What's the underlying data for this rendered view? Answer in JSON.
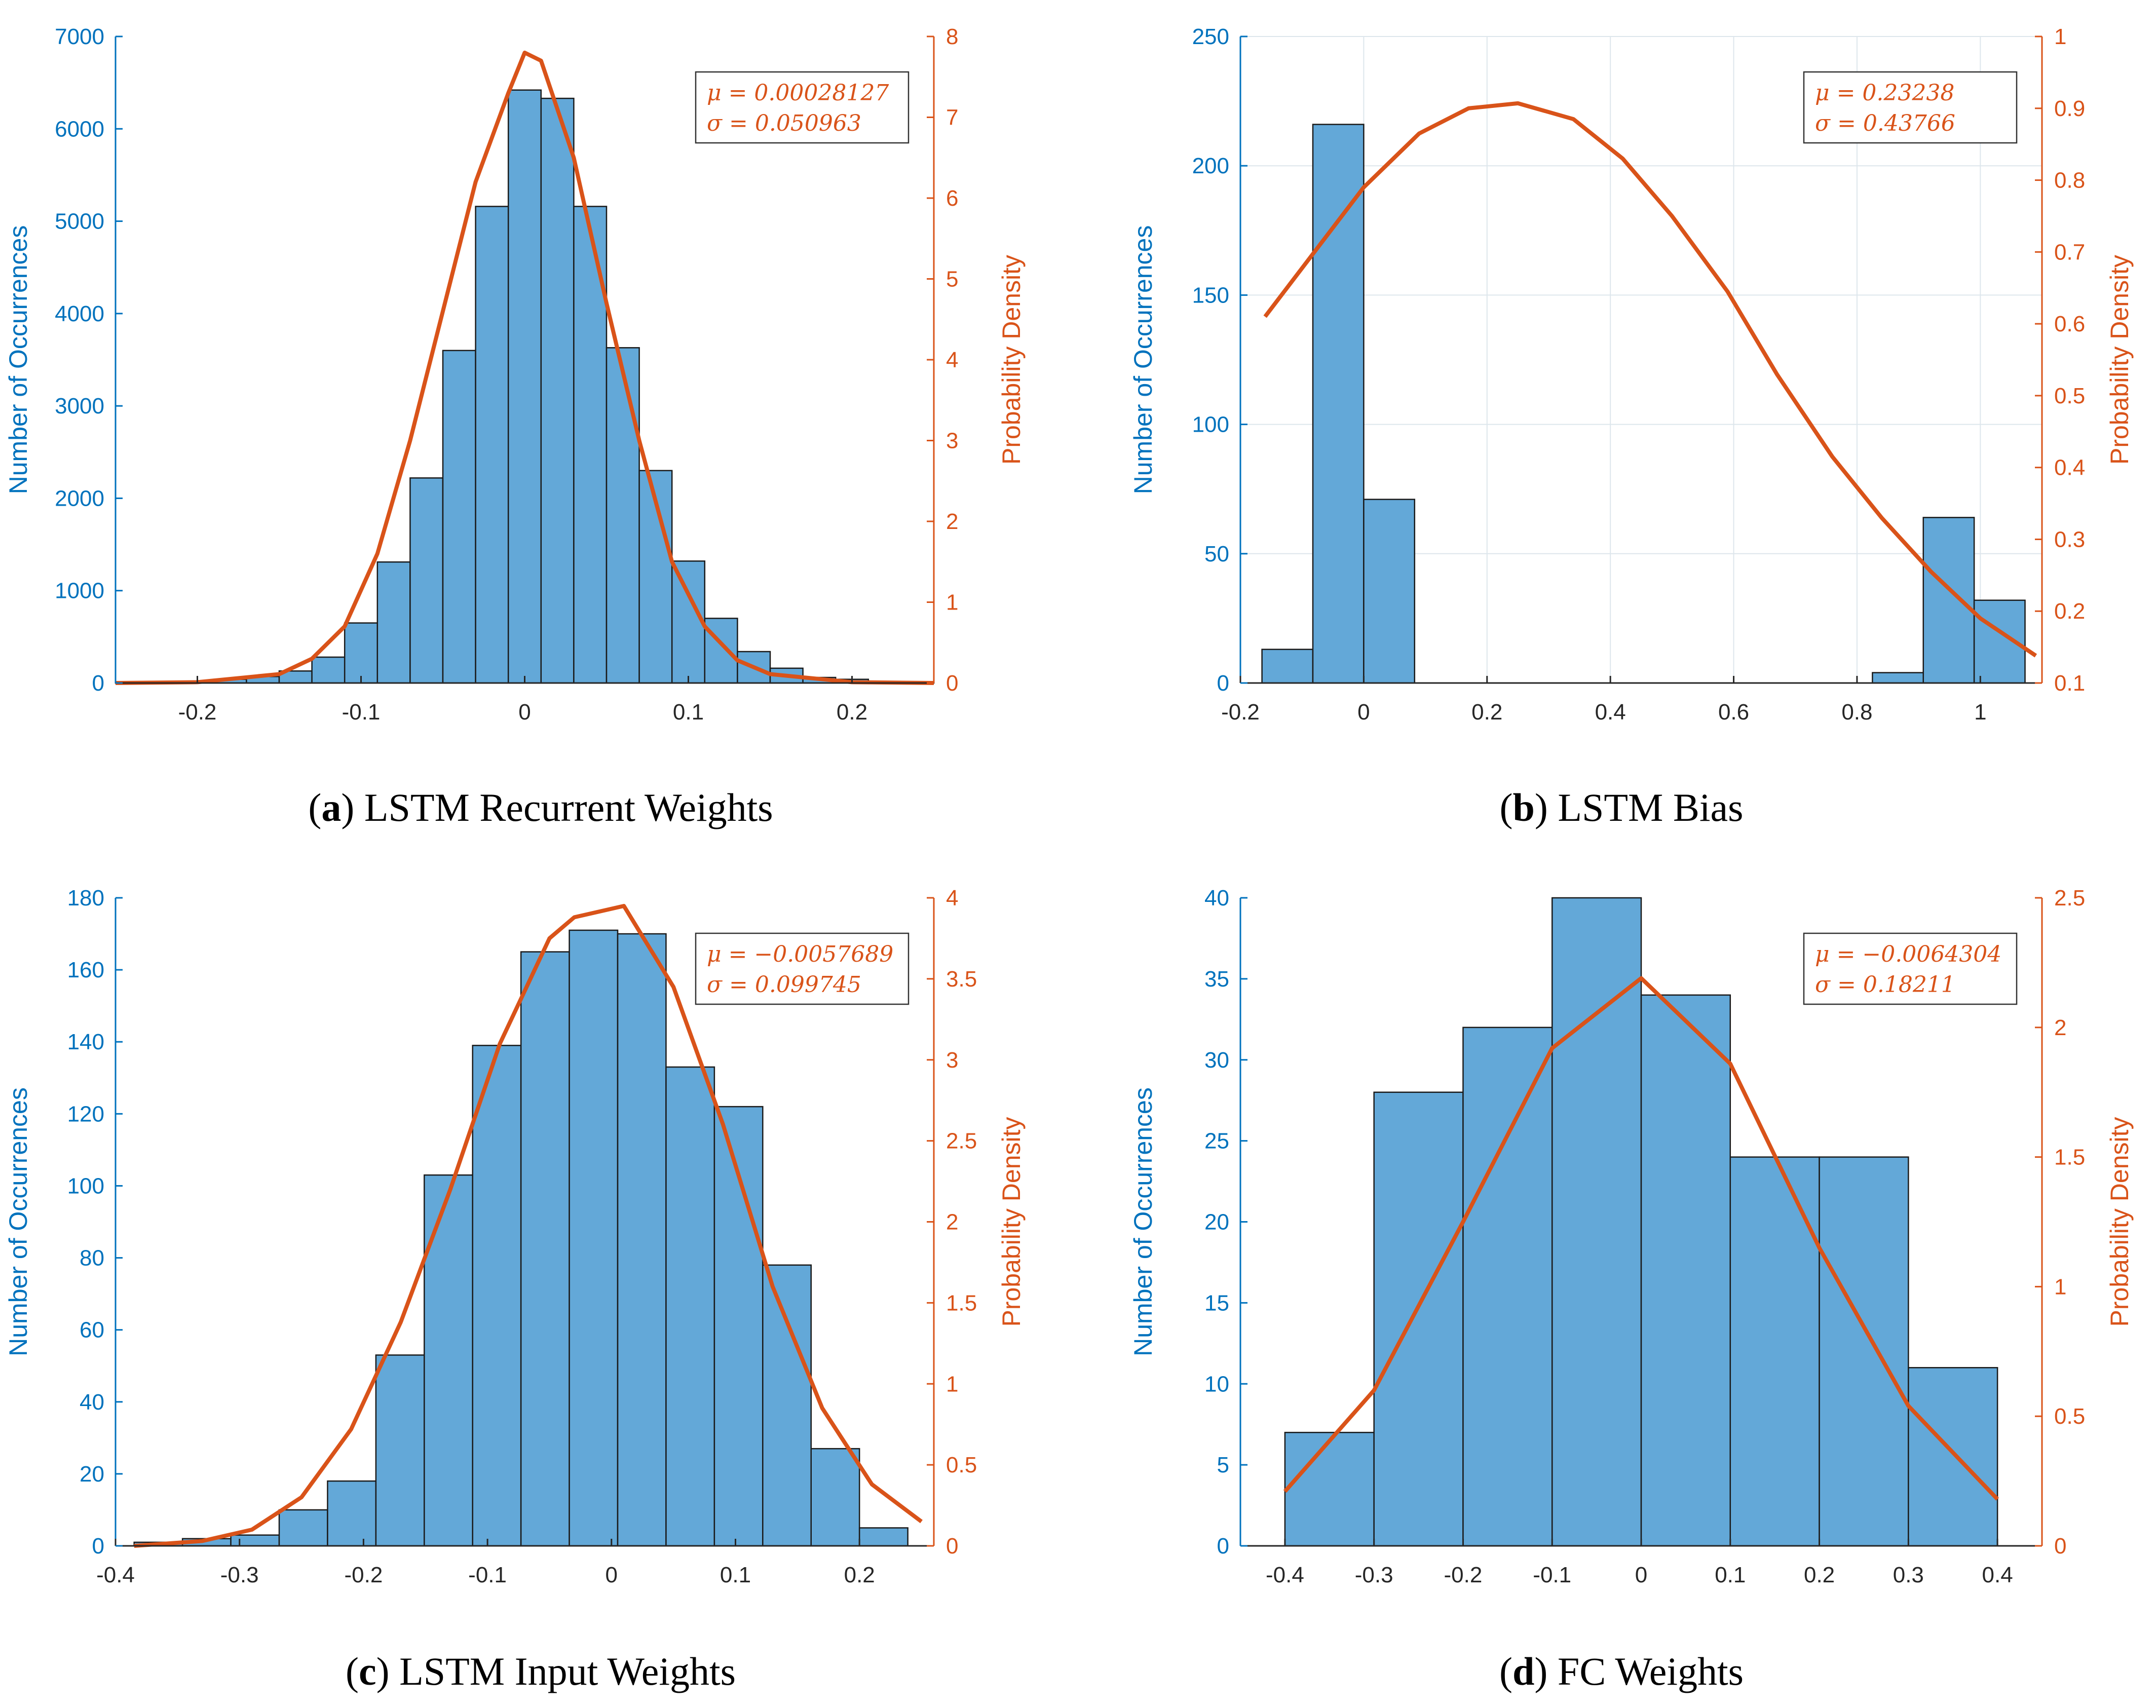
{
  "colors": {
    "bar_fill": "#63a8d8",
    "bar_stroke": "#1a1a1a",
    "line": "#d95319",
    "left_axis": "#0072bd",
    "right_axis": "#d95319",
    "grid": "#dde6ec",
    "tick_text": "#262626"
  },
  "chart_data": [
    {
      "id": "a",
      "type": "bar",
      "caption": {
        "letter": "a",
        "title": "LSTM Recurrent Weights"
      },
      "ylabel": "Number of Occurrences",
      "y2label": "Probability Density",
      "xlim": [
        -0.25,
        0.25
      ],
      "ylim": [
        0,
        7000
      ],
      "y2lim": [
        0,
        8
      ],
      "xticks": [
        -0.2,
        -0.1,
        0,
        0.1,
        0.2
      ],
      "xtick_labels": [
        "-0.2",
        "-0.1",
        "0",
        "0.1",
        "0.2"
      ],
      "yticks": [
        0,
        1000,
        2000,
        3000,
        4000,
        5000,
        6000,
        7000
      ],
      "ytick_labels": [
        "0",
        "1000",
        "2000",
        "3000",
        "4000",
        "5000",
        "6000",
        "7000"
      ],
      "y2ticks": [
        0,
        1,
        2,
        3,
        4,
        5,
        6,
        7,
        8
      ],
      "y2tick_labels": [
        "0",
        "1",
        "2",
        "3",
        "4",
        "5",
        "6",
        "7",
        "8"
      ],
      "grid": false,
      "bins": {
        "edges": [
          -0.25,
          -0.23,
          -0.21,
          -0.19,
          -0.17,
          -0.15,
          -0.13,
          -0.11,
          -0.09,
          -0.07,
          -0.05,
          -0.03,
          -0.01,
          0.01,
          0.03,
          0.05,
          0.07,
          0.09,
          0.11,
          0.13,
          0.15,
          0.17,
          0.19,
          0.21,
          0.23,
          0.25
        ],
        "counts": [
          5,
          10,
          20,
          40,
          70,
          130,
          280,
          650,
          1310,
          2220,
          3600,
          5160,
          6420,
          6330,
          5160,
          3630,
          2300,
          1320,
          700,
          340,
          160,
          60,
          40,
          15,
          5
        ]
      },
      "pdf": {
        "x": [
          -0.25,
          -0.2,
          -0.15,
          -0.13,
          -0.11,
          -0.09,
          -0.07,
          -0.05,
          -0.03,
          -0.01,
          0.0,
          0.01,
          0.03,
          0.05,
          0.07,
          0.09,
          0.11,
          0.13,
          0.15,
          0.2,
          0.25
        ],
        "y": [
          0,
          0.01,
          0.11,
          0.3,
          0.7,
          1.6,
          3.0,
          4.6,
          6.2,
          7.3,
          7.8,
          7.7,
          6.5,
          4.7,
          3.0,
          1.5,
          0.7,
          0.28,
          0.11,
          0.01,
          0
        ]
      },
      "legend": {
        "mu": "μ = 0.00028127",
        "sigma": "σ = 0.050963",
        "position": "top-right"
      }
    },
    {
      "id": "b",
      "type": "bar",
      "caption": {
        "letter": "b",
        "title": "LSTM Bias"
      },
      "ylabel": "Number of Occurrences",
      "y2label": "Probability Density",
      "xlim": [
        -0.2,
        1.1
      ],
      "ylim": [
        0,
        250
      ],
      "y2lim": [
        0.1,
        1.0
      ],
      "xticks": [
        -0.2,
        0,
        0.2,
        0.4,
        0.6,
        0.8,
        1.0
      ],
      "xtick_labels": [
        "-0.2",
        "0",
        "0.2",
        "0.4",
        "0.6",
        "0.8",
        "1"
      ],
      "yticks": [
        0,
        50,
        100,
        150,
        200,
        250
      ],
      "ytick_labels": [
        "0",
        "50",
        "100",
        "150",
        "200",
        "250"
      ],
      "y2ticks": [
        0.1,
        0.2,
        0.3,
        0.4,
        0.5,
        0.6,
        0.7,
        0.8,
        0.9,
        1.0
      ],
      "y2tick_labels": [
        "0.1",
        "0.2",
        "0.3",
        "0.4",
        "0.5",
        "0.6",
        "0.7",
        "0.8",
        "0.9",
        "1"
      ],
      "grid": true,
      "bins": {
        "edges": [
          -0.165,
          -0.0825,
          0.0,
          0.0825,
          0.165,
          0.2475,
          0.33,
          0.4125,
          0.495,
          0.5775,
          0.66,
          0.7425,
          0.825,
          0.9075,
          0.99,
          1.0725
        ],
        "counts": [
          13,
          216,
          71,
          0,
          0,
          0,
          0,
          0,
          0,
          0,
          0,
          0,
          4,
          64,
          32
        ]
      },
      "pdf": {
        "x": [
          -0.16,
          -0.08,
          0.0,
          0.09,
          0.17,
          0.25,
          0.34,
          0.42,
          0.5,
          0.59,
          0.67,
          0.76,
          0.84,
          0.92,
          1.0,
          1.09
        ],
        "y": [
          0.61,
          0.7,
          0.79,
          0.865,
          0.9,
          0.907,
          0.885,
          0.83,
          0.75,
          0.645,
          0.53,
          0.415,
          0.33,
          0.255,
          0.19,
          0.138
        ]
      },
      "legend": {
        "mu": "μ = 0.23238",
        "sigma": "σ = 0.43766",
        "position": "top-right"
      }
    },
    {
      "id": "c",
      "type": "bar",
      "caption": {
        "letter": "c",
        "title": "LSTM Input Weights"
      },
      "ylabel": "Number of Occurrences",
      "y2label": "Probability Density",
      "xlim": [
        -0.4,
        0.26
      ],
      "ylim": [
        0,
        180
      ],
      "y2lim": [
        0,
        4
      ],
      "xticks": [
        -0.4,
        -0.3,
        -0.2,
        -0.1,
        0,
        0.1,
        0.2
      ],
      "xtick_labels": [
        "-0.4",
        "-0.3",
        "-0.2",
        "-0.1",
        "0",
        "0.1",
        "0.2"
      ],
      "yticks": [
        0,
        20,
        40,
        60,
        80,
        100,
        120,
        140,
        160,
        180
      ],
      "ytick_labels": [
        "0",
        "20",
        "40",
        "60",
        "80",
        "100",
        "120",
        "140",
        "160",
        "180"
      ],
      "y2ticks": [
        0,
        0.5,
        1,
        1.5,
        2,
        2.5,
        3,
        3.5,
        4
      ],
      "y2tick_labels": [
        "0",
        "0.5",
        "1",
        "1.5",
        "2",
        "2.5",
        "3",
        "3.5",
        "4"
      ],
      "grid": false,
      "bins": {
        "edges": [
          -0.385,
          -0.346,
          -0.307,
          -0.268,
          -0.229,
          -0.19,
          -0.151,
          -0.112,
          -0.073,
          -0.034,
          0.005,
          0.044,
          0.083,
          0.122,
          0.161,
          0.2,
          0.239
        ],
        "counts": [
          1,
          2,
          3,
          10,
          18,
          53,
          103,
          139,
          165,
          171,
          170,
          133,
          122,
          78,
          27,
          5
        ]
      },
      "pdf": {
        "x": [
          -0.385,
          -0.33,
          -0.29,
          -0.25,
          -0.21,
          -0.17,
          -0.13,
          -0.09,
          -0.05,
          -0.03,
          0.01,
          0.05,
          0.09,
          0.13,
          0.17,
          0.21,
          0.25
        ],
        "y": [
          0.0,
          0.03,
          0.1,
          0.3,
          0.72,
          1.38,
          2.2,
          3.1,
          3.75,
          3.88,
          3.95,
          3.45,
          2.6,
          1.6,
          0.85,
          0.38,
          0.15
        ]
      },
      "legend": {
        "mu": "μ = −0.0057689",
        "sigma": "σ = 0.099745",
        "position": "top-right"
      }
    },
    {
      "id": "d",
      "type": "bar",
      "caption": {
        "letter": "d",
        "title": "FC Weights"
      },
      "ylabel": "Number of Occurrences",
      "y2label": "Probability Density",
      "xlim": [
        -0.45,
        0.45
      ],
      "ylim": [
        0,
        40
      ],
      "y2lim": [
        0,
        2.5
      ],
      "xticks": [
        -0.4,
        -0.3,
        -0.2,
        -0.1,
        0,
        0.1,
        0.2,
        0.3,
        0.4
      ],
      "xtick_labels": [
        "-0.4",
        "-0.3",
        "-0.2",
        "-0.1",
        "0",
        "0.1",
        "0.2",
        "0.3",
        "0.4"
      ],
      "yticks": [
        0,
        5,
        10,
        15,
        20,
        25,
        30,
        35,
        40
      ],
      "ytick_labels": [
        "0",
        "5",
        "10",
        "15",
        "20",
        "25",
        "30",
        "35",
        "40"
      ],
      "y2ticks": [
        0,
        0.5,
        1,
        1.5,
        2,
        2.5
      ],
      "y2tick_labels": [
        "0",
        "0.5",
        "1",
        "1.5",
        "2",
        "2.5"
      ],
      "grid": false,
      "bins": {
        "edges": [
          -0.4,
          -0.3,
          -0.2,
          -0.1,
          0.0,
          0.1,
          0.2,
          0.3,
          0.4
        ],
        "counts": [
          7,
          28,
          32,
          40,
          34,
          24,
          24,
          11
        ]
      },
      "pdf": {
        "x": [
          -0.4,
          -0.3,
          -0.2,
          -0.1,
          0.0,
          0.1,
          0.2,
          0.3,
          0.4
        ],
        "y": [
          0.21,
          0.6,
          1.25,
          1.92,
          2.19,
          1.86,
          1.15,
          0.54,
          0.18
        ]
      },
      "legend": {
        "mu": "μ = −0.0064304",
        "sigma": "σ = 0.18211",
        "position": "top-right"
      }
    }
  ]
}
